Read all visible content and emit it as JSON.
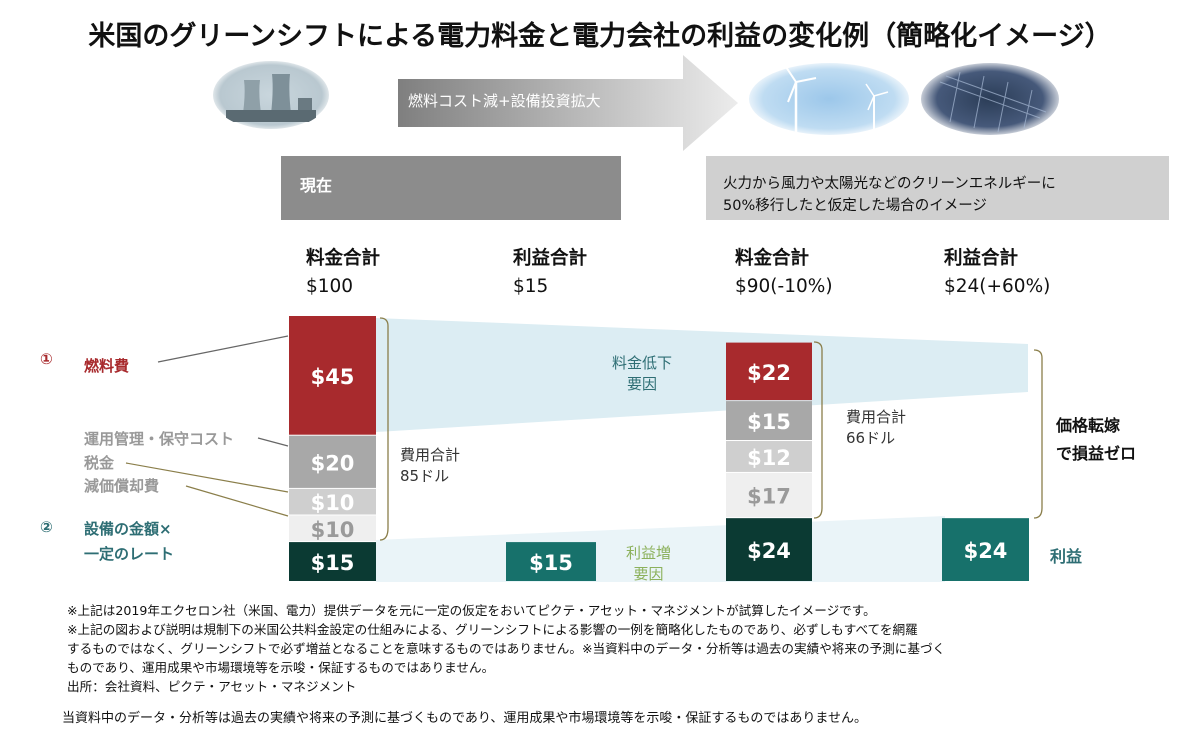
{
  "title": "米国のグリーンシフトによる電力料金と電力会社の利益の変化例（簡略化イメージ）",
  "arrow_label": "燃料コスト減+設備投資拡大",
  "box_current": "現在",
  "box_scenario": [
    "火力から風力や太陽光などのクリーンエネルギーに",
    "50%移行したと仮定した場合のイメージ"
  ],
  "headers": [
    {
      "label": "料金合計",
      "value": "$100"
    },
    {
      "label": "利益合計",
      "value": "$15"
    },
    {
      "label": "料金合計",
      "value": "$90(-10%)"
    },
    {
      "label": "利益合計",
      "value": "$24(+60%)"
    }
  ],
  "left_labels": {
    "fuel_num": "①",
    "fuel": "燃料費",
    "opex": "運用管理・保守コスト",
    "tax": "税金",
    "depreciation": "減価償却費",
    "capital_num": "②",
    "capital_line1": "設備の金額×",
    "capital_line2": "一定のレート"
  },
  "annotations": {
    "cost_total_now": [
      "費用合計",
      "85ドル"
    ],
    "cost_total_future": [
      "費用合計",
      "66ドル"
    ],
    "rate_decline": [
      "料金低下",
      "要因"
    ],
    "profit_increase": [
      "利益増",
      "要因"
    ],
    "price_pass": [
      "価格転嫁",
      "で損益ゼロ"
    ],
    "profit": "利益"
  },
  "colors": {
    "fuel": "#a82a2d",
    "opex": "#a8a8a8",
    "tax": "#cfcfcf",
    "depreciation": "#efefef",
    "profit": "#0b3a33",
    "profit_teal": "#17716b",
    "flow": "#dcedf3",
    "bracket": "#8a7e4a",
    "fuel_text": "#a82a2d",
    "teal_text": "#2e6e74",
    "green_text": "#8cb15c",
    "gray_text": "#999999"
  },
  "chart_data": {
    "type": "bar",
    "stacked": true,
    "categories": [
      "料金合計 現在",
      "利益合計 現在",
      "料金合計 移行後",
      "利益合計 移行後"
    ],
    "series": [
      {
        "name": "燃料費",
        "values": [
          45,
          0,
          22,
          0
        ],
        "labels": [
          "$45",
          "",
          "$22",
          ""
        ]
      },
      {
        "name": "運用管理・保守コスト",
        "values": [
          20,
          0,
          15,
          0
        ],
        "labels": [
          "$20",
          "",
          "$15",
          ""
        ]
      },
      {
        "name": "税金",
        "values": [
          10,
          0,
          12,
          0
        ],
        "labels": [
          "$10",
          "",
          "$12",
          ""
        ]
      },
      {
        "name": "減価償却費",
        "values": [
          10,
          0,
          17,
          0
        ],
        "labels": [
          "$10",
          "",
          "$17",
          ""
        ]
      },
      {
        "name": "利益",
        "values": [
          15,
          15,
          24,
          24
        ],
        "labels": [
          "$15",
          "$15",
          "$24",
          "$24"
        ]
      }
    ]
  },
  "notes": [
    "※上記は2019年エクセロン社（米国、電力）提供データを元に一定の仮定をおいてピクテ・アセット・マネジメントが試算したイメージです。",
    "※上記の図および説明は規制下の米国公共料金設定の仕組みによる、グリーンシフトによる影響の一例を簡略化したものであり、必ずしもすべてを網羅",
    "するものではなく、グリーンシフトで必ず増益となることを意味するものではありません。※当資料中のデータ・分析等は過去の実績や将来の予測に基づく",
    "ものであり、運用成果や市場環境等を示唆・保証するものではありません。",
    "出所：会社資料、ピクテ・アセット・マネジメント"
  ],
  "disclaimer": "当資料中のデータ・分析等は過去の実績や将来の予測に基づくものであり、運用成果や市場環境等を示唆・保証するものではありません。"
}
